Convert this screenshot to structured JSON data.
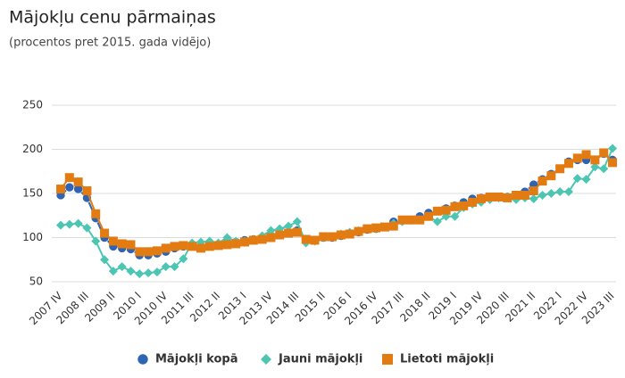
{
  "chart_data": {
    "type": "line",
    "title": "Mājokļu cenu pārmaiņas",
    "subtitle": "(procentos pret 2015. gada vidējo)",
    "categories": [
      "2007 IV",
      null,
      null,
      "2008 III",
      null,
      null,
      "2009 II",
      null,
      null,
      "2010 I",
      null,
      null,
      "2010 IV",
      null,
      null,
      "2011 III",
      null,
      null,
      "2012 II",
      null,
      null,
      "2013 I",
      null,
      null,
      "2013 IV",
      null,
      null,
      "2014 III",
      null,
      null,
      "2015 II",
      null,
      null,
      "2016 I",
      null,
      null,
      "2016 IV",
      null,
      null,
      "2017 III",
      null,
      null,
      "2018 II",
      null,
      null,
      "2019 I",
      null,
      null,
      "2019 IV",
      null,
      null,
      "2020 III",
      null,
      null,
      "2021 II",
      null,
      null,
      "2022 I",
      null,
      null,
      "2022 IV",
      null,
      null,
      "2023 III"
    ],
    "series": [
      {
        "name": "Mājokļi kopā",
        "color": "#2f64b4",
        "marker": "circle",
        "values": [
          148,
          157,
          155,
          145,
          122,
          100,
          90,
          88,
          87,
          80,
          80,
          82,
          84,
          88,
          90,
          90,
          90,
          92,
          92,
          94,
          95,
          97,
          98,
          100,
          102,
          104,
          106,
          108,
          98,
          97,
          100,
          100,
          102,
          104,
          106,
          109,
          110,
          112,
          118,
          120,
          120,
          124,
          128,
          130,
          133,
          136,
          140,
          144,
          145,
          145,
          146,
          146,
          148,
          152,
          160,
          166,
          172,
          178,
          186,
          188,
          188,
          188,
          195,
          188
        ]
      },
      {
        "name": "Jauni mājokļi",
        "color": "#4cc6b2",
        "marker": "diamond",
        "values": [
          114,
          115,
          116,
          111,
          96,
          75,
          62,
          67,
          62,
          59,
          60,
          61,
          67,
          67,
          76,
          94,
          95,
          96,
          94,
          100,
          96,
          96,
          98,
          102,
          108,
          110,
          113,
          118,
          94,
          96,
          100,
          101,
          104,
          106,
          108,
          110,
          110,
          112,
          116,
          118,
          120,
          120,
          124,
          118,
          124,
          124,
          134,
          138,
          140,
          143,
          145,
          145,
          143,
          145,
          144,
          148,
          150,
          152,
          152,
          167,
          166,
          180,
          178,
          201
        ]
      },
      {
        "name": "Lietoti mājokļi",
        "color": "#e27c12",
        "marker": "square",
        "values": [
          155,
          168,
          163,
          153,
          127,
          105,
          96,
          93,
          92,
          84,
          84,
          85,
          88,
          90,
          91,
          90,
          88,
          90,
          91,
          92,
          93,
          95,
          97,
          98,
          100,
          103,
          105,
          106,
          98,
          97,
          101,
          101,
          103,
          104,
          107,
          110,
          111,
          112,
          113,
          120,
          120,
          120,
          124,
          130,
          131,
          135,
          136,
          140,
          144,
          146,
          146,
          145,
          148,
          148,
          153,
          164,
          170,
          178,
          184,
          190,
          194,
          188,
          196,
          185
        ]
      }
    ],
    "ylim": [
      50,
      250
    ],
    "yticks": [
      50,
      100,
      150,
      200,
      250
    ],
    "grid": true
  }
}
